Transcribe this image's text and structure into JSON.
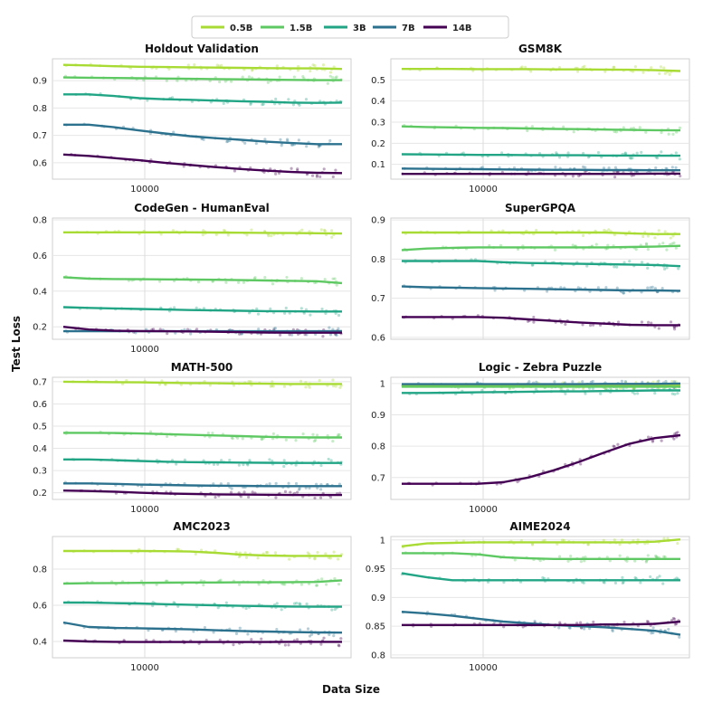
{
  "figure": {
    "xlabel": "Data Size",
    "ylabel": "Test Loss"
  },
  "legend": {
    "placement": "top-center",
    "entries": [
      {
        "name": "0.5B",
        "color": "#a8db34"
      },
      {
        "name": "1.5B",
        "color": "#5ec962"
      },
      {
        "name": "3B",
        "color": "#21a585"
      },
      {
        "name": "7B",
        "color": "#2c728e"
      },
      {
        "name": "14B",
        "color": "#440154"
      }
    ]
  },
  "chart_data": [
    {
      "type": "line",
      "title": "Holdout Validation",
      "x_tick_labels": [
        "10000"
      ],
      "ylim": [
        0.54,
        0.98
      ],
      "yticks": [
        0.6,
        0.7,
        0.8,
        0.9
      ],
      "ytick_labels": [
        "0.6",
        "0.7",
        "0.8",
        "0.9"
      ],
      "grid": true,
      "series": [
        {
          "name": "0.5B",
          "values": [
            0.958,
            0.956,
            0.953,
            0.951,
            0.95,
            0.949,
            0.948,
            0.947,
            0.946,
            0.945,
            0.945,
            0.943
          ]
        },
        {
          "name": "1.5B",
          "values": [
            0.912,
            0.911,
            0.91,
            0.909,
            0.908,
            0.907,
            0.906,
            0.905,
            0.904,
            0.903,
            0.902,
            0.902
          ]
        },
        {
          "name": "3B",
          "values": [
            0.85,
            0.85,
            0.844,
            0.836,
            0.832,
            0.83,
            0.827,
            0.825,
            0.823,
            0.82,
            0.819,
            0.82
          ]
        },
        {
          "name": "7B",
          "values": [
            0.739,
            0.739,
            0.73,
            0.718,
            0.707,
            0.697,
            0.69,
            0.684,
            0.677,
            0.672,
            0.668,
            0.668
          ]
        },
        {
          "name": "14B",
          "values": [
            0.63,
            0.625,
            0.617,
            0.609,
            0.6,
            0.592,
            0.584,
            0.577,
            0.571,
            0.566,
            0.563,
            0.562
          ]
        }
      ]
    },
    {
      "type": "line",
      "title": "GSM8K",
      "x_tick_labels": [
        "10000"
      ],
      "ylim": [
        0.03,
        0.6
      ],
      "yticks": [
        0.1,
        0.2,
        0.3,
        0.4,
        0.5
      ],
      "ytick_labels": [
        "0.1",
        "0.2",
        "0.3",
        "0.4",
        "0.5"
      ],
      "grid": true,
      "series": [
        {
          "name": "0.5B",
          "values": [
            0.552,
            0.552,
            0.552,
            0.551,
            0.551,
            0.551,
            0.55,
            0.55,
            0.549,
            0.548,
            0.546,
            0.542
          ]
        },
        {
          "name": "1.5B",
          "values": [
            0.28,
            0.277,
            0.275,
            0.273,
            0.272,
            0.27,
            0.268,
            0.267,
            0.265,
            0.263,
            0.262,
            0.261
          ]
        },
        {
          "name": "3B",
          "values": [
            0.148,
            0.147,
            0.146,
            0.145,
            0.145,
            0.144,
            0.143,
            0.143,
            0.142,
            0.142,
            0.141,
            0.141
          ]
        },
        {
          "name": "7B",
          "values": [
            0.08,
            0.079,
            0.078,
            0.077,
            0.076,
            0.075,
            0.074,
            0.074,
            0.073,
            0.073,
            0.072,
            0.072
          ]
        },
        {
          "name": "14B",
          "values": [
            0.055,
            0.055,
            0.055,
            0.055,
            0.055,
            0.055,
            0.055,
            0.055,
            0.055,
            0.055,
            0.056,
            0.056
          ]
        }
      ]
    },
    {
      "type": "line",
      "title": "CodeGen - HumanEval",
      "x_tick_labels": [
        "10000"
      ],
      "ylim": [
        0.13,
        0.81
      ],
      "yticks": [
        0.2,
        0.4,
        0.6,
        0.8
      ],
      "ytick_labels": [
        "0.2",
        "0.4",
        "0.6",
        "0.8"
      ],
      "grid": true,
      "series": [
        {
          "name": "0.5B",
          "values": [
            0.73,
            0.73,
            0.73,
            0.73,
            0.73,
            0.73,
            0.729,
            0.728,
            0.727,
            0.726,
            0.725,
            0.723
          ]
        },
        {
          "name": "1.5B",
          "values": [
            0.478,
            0.47,
            0.468,
            0.467,
            0.466,
            0.465,
            0.464,
            0.462,
            0.46,
            0.458,
            0.456,
            0.445
          ]
        },
        {
          "name": "3B",
          "values": [
            0.31,
            0.306,
            0.303,
            0.3,
            0.297,
            0.294,
            0.292,
            0.29,
            0.288,
            0.287,
            0.286,
            0.286
          ]
        },
        {
          "name": "7B",
          "values": [
            0.175,
            0.175,
            0.175,
            0.175,
            0.175,
            0.175,
            0.175,
            0.175,
            0.175,
            0.175,
            0.175,
            0.176
          ]
        },
        {
          "name": "14B",
          "values": [
            0.2,
            0.185,
            0.178,
            0.176,
            0.175,
            0.174,
            0.172,
            0.17,
            0.168,
            0.167,
            0.167,
            0.167
          ]
        }
      ]
    },
    {
      "type": "line",
      "title": "SuperGPQA",
      "x_tick_labels": [],
      "ylim": [
        0.595,
        0.905
      ],
      "yticks": [
        0.6,
        0.7,
        0.8,
        0.9
      ],
      "ytick_labels": [
        "0.6",
        "0.7",
        "0.8",
        "0.9"
      ],
      "grid": true,
      "series": [
        {
          "name": "0.5B",
          "values": [
            0.868,
            0.868,
            0.868,
            0.868,
            0.868,
            0.868,
            0.868,
            0.868,
            0.868,
            0.866,
            0.864,
            0.864
          ]
        },
        {
          "name": "1.5B",
          "values": [
            0.823,
            0.827,
            0.829,
            0.83,
            0.83,
            0.83,
            0.83,
            0.83,
            0.83,
            0.831,
            0.832,
            0.834
          ]
        },
        {
          "name": "3B",
          "values": [
            0.795,
            0.795,
            0.795,
            0.795,
            0.792,
            0.79,
            0.789,
            0.788,
            0.787,
            0.786,
            0.785,
            0.782
          ]
        },
        {
          "name": "7B",
          "values": [
            0.73,
            0.728,
            0.727,
            0.726,
            0.725,
            0.724,
            0.723,
            0.722,
            0.721,
            0.72,
            0.72,
            0.719
          ]
        },
        {
          "name": "14B",
          "values": [
            0.652,
            0.652,
            0.652,
            0.652,
            0.65,
            0.646,
            0.642,
            0.638,
            0.635,
            0.632,
            0.631,
            0.631
          ]
        }
      ]
    },
    {
      "type": "line",
      "title": "MATH-500",
      "x_tick_labels": [
        "10000"
      ],
      "ylim": [
        0.17,
        0.72
      ],
      "yticks": [
        0.2,
        0.3,
        0.4,
        0.5,
        0.6,
        0.7
      ],
      "ytick_labels": [
        "0.2",
        "0.3",
        "0.4",
        "0.5",
        "0.6",
        "0.7"
      ],
      "grid": true,
      "series": [
        {
          "name": "0.5B",
          "values": [
            0.7,
            0.699,
            0.698,
            0.697,
            0.695,
            0.694,
            0.693,
            0.692,
            0.691,
            0.69,
            0.69,
            0.69
          ]
        },
        {
          "name": "1.5B",
          "values": [
            0.47,
            0.47,
            0.469,
            0.467,
            0.464,
            0.461,
            0.458,
            0.455,
            0.452,
            0.45,
            0.449,
            0.449
          ]
        },
        {
          "name": "3B",
          "values": [
            0.35,
            0.35,
            0.347,
            0.343,
            0.34,
            0.338,
            0.337,
            0.336,
            0.335,
            0.334,
            0.334,
            0.334
          ]
        },
        {
          "name": "7B",
          "values": [
            0.242,
            0.242,
            0.24,
            0.237,
            0.235,
            0.233,
            0.232,
            0.231,
            0.23,
            0.23,
            0.23,
            0.23
          ]
        },
        {
          "name": "14B",
          "values": [
            0.21,
            0.208,
            0.205,
            0.2,
            0.197,
            0.195,
            0.193,
            0.192,
            0.191,
            0.19,
            0.19,
            0.19
          ]
        }
      ]
    },
    {
      "type": "line",
      "title": "Logic - Zebra Puzzle",
      "x_tick_labels": [
        "10000"
      ],
      "ylim": [
        0.63,
        1.02
      ],
      "yticks": [
        0.7,
        0.8,
        0.9,
        1.0
      ],
      "ytick_labels": [
        "0.7",
        "0.8",
        "0.9",
        "1"
      ],
      "grid": true,
      "series": [
        {
          "name": "0.5B",
          "values": [
            0.994,
            0.994,
            0.994,
            0.994,
            0.994,
            0.994,
            0.994,
            0.994,
            0.994,
            0.994,
            0.994,
            0.994
          ]
        },
        {
          "name": "1.5B",
          "values": [
            0.99,
            0.99,
            0.99,
            0.99,
            0.99,
            0.99,
            0.99,
            0.99,
            0.99,
            0.99,
            0.99,
            0.99
          ]
        },
        {
          "name": "3B",
          "values": [
            0.97,
            0.97,
            0.971,
            0.972,
            0.973,
            0.974,
            0.975,
            0.975,
            0.976,
            0.977,
            0.978,
            0.978
          ]
        },
        {
          "name": "7B",
          "values": [
            0.998,
            0.998,
            0.998,
            0.998,
            0.998,
            0.998,
            0.998,
            0.998,
            0.999,
            0.999,
            0.999,
            1.0
          ]
        },
        {
          "name": "14B",
          "values": [
            0.68,
            0.68,
            0.68,
            0.68,
            0.685,
            0.7,
            0.723,
            0.75,
            0.78,
            0.808,
            0.826,
            0.835
          ]
        }
      ]
    },
    {
      "type": "line",
      "title": "AMC2023",
      "x_tick_labels": [
        "10000"
      ],
      "ylim": [
        0.31,
        0.98
      ],
      "yticks": [
        0.4,
        0.6,
        0.8
      ],
      "ytick_labels": [
        "0.4",
        "0.6",
        "0.8"
      ],
      "grid": true,
      "series": [
        {
          "name": "0.5B",
          "values": [
            0.9,
            0.9,
            0.9,
            0.9,
            0.899,
            0.897,
            0.89,
            0.88,
            0.875,
            0.873,
            0.873,
            0.873
          ]
        },
        {
          "name": "1.5B",
          "values": [
            0.72,
            0.722,
            0.723,
            0.724,
            0.725,
            0.726,
            0.726,
            0.727,
            0.727,
            0.728,
            0.729,
            0.738
          ]
        },
        {
          "name": "3B",
          "values": [
            0.615,
            0.615,
            0.612,
            0.61,
            0.606,
            0.603,
            0.6,
            0.597,
            0.595,
            0.593,
            0.592,
            0.592
          ]
        },
        {
          "name": "7B",
          "values": [
            0.505,
            0.48,
            0.475,
            0.473,
            0.47,
            0.467,
            0.462,
            0.458,
            0.455,
            0.452,
            0.45,
            0.449
          ]
        },
        {
          "name": "14B",
          "values": [
            0.405,
            0.4,
            0.398,
            0.397,
            0.397,
            0.397,
            0.397,
            0.397,
            0.397,
            0.398,
            0.398,
            0.398
          ]
        }
      ]
    },
    {
      "type": "line",
      "title": "AIME2024",
      "x_tick_labels": [
        "10000"
      ],
      "ylim": [
        0.795,
        1.006
      ],
      "yticks": [
        0.8,
        0.85,
        0.9,
        0.95,
        1.0
      ],
      "ytick_labels": [
        "0.8",
        "0.85",
        "0.9",
        "0.95",
        "1"
      ],
      "grid": true,
      "series": [
        {
          "name": "0.5B",
          "values": [
            0.989,
            0.994,
            0.995,
            0.996,
            0.996,
            0.996,
            0.996,
            0.996,
            0.996,
            0.996,
            0.997,
            1.001
          ]
        },
        {
          "name": "1.5B",
          "values": [
            0.977,
            0.977,
            0.977,
            0.975,
            0.97,
            0.968,
            0.967,
            0.967,
            0.967,
            0.967,
            0.967,
            0.967
          ]
        },
        {
          "name": "3B",
          "values": [
            0.942,
            0.935,
            0.93,
            0.93,
            0.93,
            0.93,
            0.93,
            0.93,
            0.93,
            0.93,
            0.93,
            0.93
          ]
        },
        {
          "name": "7B",
          "values": [
            0.875,
            0.872,
            0.868,
            0.863,
            0.858,
            0.855,
            0.852,
            0.85,
            0.848,
            0.845,
            0.842,
            0.835
          ]
        },
        {
          "name": "14B",
          "values": [
            0.852,
            0.852,
            0.852,
            0.852,
            0.852,
            0.852,
            0.852,
            0.852,
            0.853,
            0.853,
            0.854,
            0.858
          ]
        }
      ]
    }
  ]
}
